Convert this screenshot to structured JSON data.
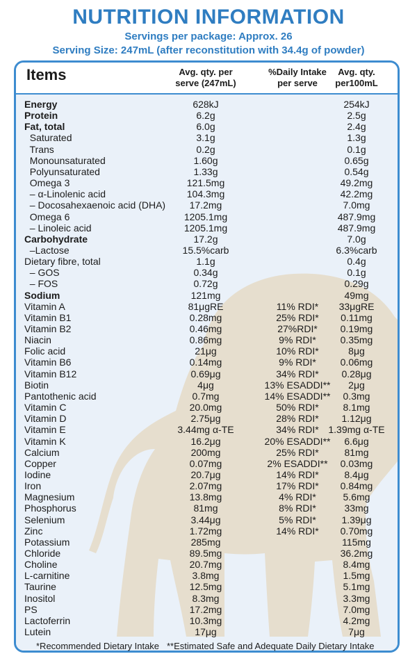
{
  "header": {
    "title": "NUTRITION INFORMATION",
    "servings": "Servings per package: Approx. 26",
    "serving_size": "Serving Size:  247mL (after reconstitution with 34.4g of powder)"
  },
  "table": {
    "col_items": "Items",
    "col_serve": [
      "Avg. qty. per",
      "serve (247mL)"
    ],
    "col_daily": [
      "%Daily Intake",
      "per serve"
    ],
    "col_100ml": [
      "Avg. qty.",
      "per100mL"
    ],
    "rows": [
      {
        "name": "Energy",
        "serve": "628kJ",
        "daily": "",
        "per100": "254kJ",
        "bold": true
      },
      {
        "name": "Protein",
        "serve": "6.2g",
        "daily": "",
        "per100": "2.5g",
        "bold": true
      },
      {
        "name": "Fat, total",
        "serve": "6.0g",
        "daily": "",
        "per100": "2.4g",
        "bold": true
      },
      {
        "name": "  Saturated",
        "serve": "3.1g",
        "daily": "",
        "per100": "1.3g",
        "bold": false
      },
      {
        "name": "  Trans",
        "serve": "0.2g",
        "daily": "",
        "per100": "0.1g",
        "bold": false
      },
      {
        "name": "  Monounsaturated",
        "serve": "1.60g",
        "daily": "",
        "per100": "0.65g",
        "bold": false
      },
      {
        "name": "  Polyunsaturated",
        "serve": "1.33g",
        "daily": "",
        "per100": "0.54g",
        "bold": false
      },
      {
        "name": "  Omega 3",
        "serve": "121.5mg",
        "daily": "",
        "per100": "49.2mg",
        "bold": false
      },
      {
        "name": "  – α-Linolenic acid",
        "serve": "104.3mg",
        "daily": "",
        "per100": "42.2mg",
        "bold": false
      },
      {
        "name": "  – Docosahexaenoic acid (DHA)",
        "serve": "17.2mg",
        "daily": "",
        "per100": "7.0mg",
        "bold": false
      },
      {
        "name": "  Omega 6",
        "serve": "1205.1mg",
        "daily": "",
        "per100": "487.9mg",
        "bold": false
      },
      {
        "name": "  – Linoleic acid",
        "serve": "1205.1mg",
        "daily": "",
        "per100": "487.9mg",
        "bold": false
      },
      {
        "name": "Carbohydrate",
        "serve": "17.2g",
        "daily": "",
        "per100": "7.0g",
        "bold": true
      },
      {
        "name": "  –Lactose",
        "serve": "15.5%carb",
        "daily": "",
        "per100": "6.3%carb",
        "bold": false
      },
      {
        "name": "Dietary fibre, total",
        "serve": "1.1g",
        "daily": "",
        "per100": "0.4g",
        "bold": false
      },
      {
        "name": "  – GOS",
        "serve": "0.34g",
        "daily": "",
        "per100": "0.1g",
        "bold": false
      },
      {
        "name": "  – FOS",
        "serve": "0.72g",
        "daily": "",
        "per100": "0.29g",
        "bold": false
      },
      {
        "name": "Sodium",
        "serve": "121mg",
        "daily": "",
        "per100": "49mg",
        "bold": true
      },
      {
        "name": "Vitamin A",
        "serve": "81μgRE",
        "daily": "11% RDI*",
        "per100": "33μgRE",
        "bold": false
      },
      {
        "name": "Vitamin B1",
        "serve": "0.28mg",
        "daily": "25% RDI*",
        "per100": "0.11mg",
        "bold": false
      },
      {
        "name": "Vitamin B2",
        "serve": "0.46mg",
        "daily": "27%RDI*",
        "per100": "0.19mg",
        "bold": false
      },
      {
        "name": "Niacin",
        "serve": "0.86mg",
        "daily": "9% RDI*",
        "per100": "0.35mg",
        "bold": false
      },
      {
        "name": "Folic acid",
        "serve": "21μg",
        "daily": "10% RDI*",
        "per100": "8μg",
        "bold": false
      },
      {
        "name": "Vitamin B6",
        "serve": "0.14mg",
        "daily": "9% RDI*",
        "per100": "0.06mg",
        "bold": false
      },
      {
        "name": "Vitamin B12",
        "serve": "0.69μg",
        "daily": "34% RDI*",
        "per100": "0.28μg",
        "bold": false
      },
      {
        "name": "Biotin",
        "serve": "4μg",
        "daily": "13% ESADDI**",
        "per100": "2μg",
        "bold": false
      },
      {
        "name": "Pantothenic acid",
        "serve": "0.7mg",
        "daily": "14% ESADDI**",
        "per100": "0.3mg",
        "bold": false
      },
      {
        "name": "Vitamin C",
        "serve": "20.0mg",
        "daily": "50% RDI*",
        "per100": "8.1mg",
        "bold": false
      },
      {
        "name": "Vitamin D",
        "serve": "2.75μg",
        "daily": "28% RDI*",
        "per100": "1.12μg",
        "bold": false
      },
      {
        "name": "Vitamin E",
        "serve": "3.44mg α-TE",
        "daily": "34% RDI*",
        "per100": "1.39mg α-TE",
        "bold": false
      },
      {
        "name": "Vitamin K",
        "serve": "16.2μg",
        "daily": "20% ESADDI**",
        "per100": "6.6μg",
        "bold": false
      },
      {
        "name": "Calcium",
        "serve": "200mg",
        "daily": "25% RDI*",
        "per100": "81mg",
        "bold": false
      },
      {
        "name": "Copper",
        "serve": "0.07mg",
        "daily": "2% ESADDI**",
        "per100": "0.03mg",
        "bold": false
      },
      {
        "name": "Iodine",
        "serve": "20.7μg",
        "daily": "14% RDI*",
        "per100": "8.4μg",
        "bold": false
      },
      {
        "name": "Iron",
        "serve": "2.07mg",
        "daily": "17% RDI*",
        "per100": "0.84mg",
        "bold": false
      },
      {
        "name": "Magnesium",
        "serve": "13.8mg",
        "daily": "4% RDI*",
        "per100": "5.6mg",
        "bold": false
      },
      {
        "name": "Phosphorus",
        "serve": "81mg",
        "daily": "8% RDI*",
        "per100": "33mg",
        "bold": false
      },
      {
        "name": "Selenium",
        "serve": "3.44μg",
        "daily": "5% RDI*",
        "per100": "1.39μg",
        "bold": false
      },
      {
        "name": "Zinc",
        "serve": "1.72mg",
        "daily": "14% RDI*",
        "per100": "0.70mg",
        "bold": false
      },
      {
        "name": "Potassium",
        "serve": "285mg",
        "daily": "",
        "per100": "115mg",
        "bold": false
      },
      {
        "name": "Chloride",
        "serve": "89.5mg",
        "daily": "",
        "per100": "36.2mg",
        "bold": false
      },
      {
        "name": "Choline",
        "serve": "20.7mg",
        "daily": "",
        "per100": "8.4mg",
        "bold": false
      },
      {
        "name": "L-carnitine",
        "serve": "3.8mg",
        "daily": "",
        "per100": "1.5mg",
        "bold": false
      },
      {
        "name": "Taurine",
        "serve": "12.5mg",
        "daily": "",
        "per100": "5.1mg",
        "bold": false
      },
      {
        "name": "Inositol",
        "serve": "8.3mg",
        "daily": "",
        "per100": "3.3mg",
        "bold": false
      },
      {
        "name": "PS",
        "serve": "17.2mg",
        "daily": "",
        "per100": "7.0mg",
        "bold": false
      },
      {
        "name": "Lactoferrin",
        "serve": "10.3mg",
        "daily": "",
        "per100": "4.2mg",
        "bold": false
      },
      {
        "name": "Lutein",
        "serve": "17μg",
        "daily": "",
        "per100": "7μg",
        "bold": false
      }
    ]
  },
  "footer": {
    "rdi_note": "*Recommended Dietary Intake",
    "esaddi_note": "**Estimated Safe and Adequate Daily Dietary Intake"
  },
  "colors": {
    "accent": "#2f7dc1",
    "border": "#3d8cd0",
    "panel_bg": "#eaf1f9",
    "silhouette": "#e6dccb"
  }
}
